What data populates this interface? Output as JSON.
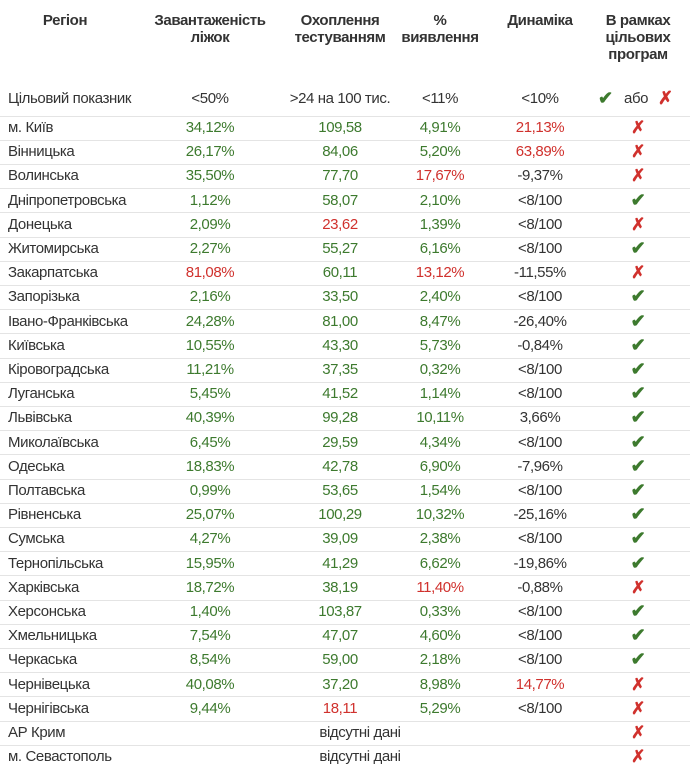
{
  "header": {
    "columns": [
      "Регіон",
      "Завантаженість\nліжок",
      "Охоплення\nтестуванням",
      "%\nвиявлення",
      "Динаміка",
      "В рамках\nцільових\nпрограм"
    ]
  },
  "target": {
    "label": "Цільовий показник",
    "values": [
      "<50%",
      ">24 на 100 тис.",
      "<11%",
      "<10%"
    ],
    "status": {
      "yes": "✔",
      "or": "або",
      "no": "✗"
    }
  },
  "colors": {
    "good": "#3d7a2e",
    "bad": "#d0312d",
    "neutral": "#333333"
  },
  "neutral_columns": [
    3
  ],
  "rows": [
    {
      "region": "м. Київ",
      "values": [
        "34,12%",
        "109,58",
        "4,91%",
        "21,13%"
      ],
      "red": [
        3
      ],
      "status": "✗"
    },
    {
      "region": "Вінницька",
      "values": [
        "26,17%",
        "84,06",
        "5,20%",
        "63,89%"
      ],
      "red": [
        3
      ],
      "status": "✗"
    },
    {
      "region": "Волинська",
      "values": [
        "35,50%",
        "77,70",
        "17,67%",
        "-9,37%"
      ],
      "red": [
        2
      ],
      "status": "✗"
    },
    {
      "region": "Дніпропетровська",
      "values": [
        "1,12%",
        "58,07",
        "2,10%",
        "<8/100"
      ],
      "status": "✔"
    },
    {
      "region": "Донецька",
      "values": [
        "2,09%",
        "23,62",
        "1,39%",
        "<8/100"
      ],
      "red": [
        1
      ],
      "status": "✗"
    },
    {
      "region": "Житомирська",
      "values": [
        "2,27%",
        "55,27",
        "6,16%",
        "<8/100"
      ],
      "status": "✔"
    },
    {
      "region": "Закарпатська",
      "values": [
        "81,08%",
        "60,11",
        "13,12%",
        "-11,55%"
      ],
      "red": [
        0,
        2
      ],
      "status": "✗"
    },
    {
      "region": "Запорізька",
      "values": [
        "2,16%",
        "33,50",
        "2,40%",
        "<8/100"
      ],
      "status": "✔"
    },
    {
      "region": "Івано-Франківська",
      "values": [
        "24,28%",
        "81,00",
        "8,47%",
        "-26,40%"
      ],
      "status": "✔"
    },
    {
      "region": "Київська",
      "values": [
        "10,55%",
        "43,30",
        "5,73%",
        "-0,84%"
      ],
      "status": "✔"
    },
    {
      "region": "Кіровоградська",
      "values": [
        "11,21%",
        "37,35",
        "0,32%",
        "<8/100"
      ],
      "status": "✔"
    },
    {
      "region": "Луганська",
      "values": [
        "5,45%",
        "41,52",
        "1,14%",
        "<8/100"
      ],
      "status": "✔"
    },
    {
      "region": "Львівська",
      "values": [
        "40,39%",
        "99,28",
        "10,11%",
        "3,66%"
      ],
      "status": "✔"
    },
    {
      "region": "Миколаївська",
      "values": [
        "6,45%",
        "29,59",
        "4,34%",
        "<8/100"
      ],
      "status": "✔"
    },
    {
      "region": "Одеська",
      "values": [
        "18,83%",
        "42,78",
        "6,90%",
        "-7,96%"
      ],
      "status": "✔"
    },
    {
      "region": "Полтавська",
      "values": [
        "0,99%",
        "53,65",
        "1,54%",
        "<8/100"
      ],
      "status": "✔"
    },
    {
      "region": "Рівненська",
      "values": [
        "25,07%",
        "100,29",
        "10,32%",
        "-25,16%"
      ],
      "status": "✔"
    },
    {
      "region": "Сумська",
      "values": [
        "4,27%",
        "39,09",
        "2,38%",
        "<8/100"
      ],
      "status": "✔"
    },
    {
      "region": "Тернопільська",
      "values": [
        "15,95%",
        "41,29",
        "6,62%",
        "-19,86%"
      ],
      "status": "✔"
    },
    {
      "region": "Харківська",
      "values": [
        "18,72%",
        "38,19",
        "11,40%",
        "-0,88%"
      ],
      "red": [
        2
      ],
      "status": "✗"
    },
    {
      "region": "Херсонська",
      "values": [
        "1,40%",
        "103,87",
        "0,33%",
        "<8/100"
      ],
      "status": "✔"
    },
    {
      "region": "Хмельницька",
      "values": [
        "7,54%",
        "47,07",
        "4,60%",
        "<8/100"
      ],
      "status": "✔"
    },
    {
      "region": "Черкаська",
      "values": [
        "8,54%",
        "59,00",
        "2,18%",
        "<8/100"
      ],
      "status": "✔"
    },
    {
      "region": "Чернівецька",
      "values": [
        "40,08%",
        "37,20",
        "8,98%",
        "14,77%"
      ],
      "red": [
        3
      ],
      "status": "✗"
    },
    {
      "region": "Чернігівська",
      "values": [
        "9,44%",
        "18,11",
        "5,29%",
        "<8/100"
      ],
      "red": [
        1
      ],
      "status": "✗"
    },
    {
      "region": "АР Крим",
      "note": "відсутні дані",
      "status": "✗"
    },
    {
      "region": "м. Севастополь",
      "note": "відсутні дані",
      "status": "✗"
    }
  ]
}
